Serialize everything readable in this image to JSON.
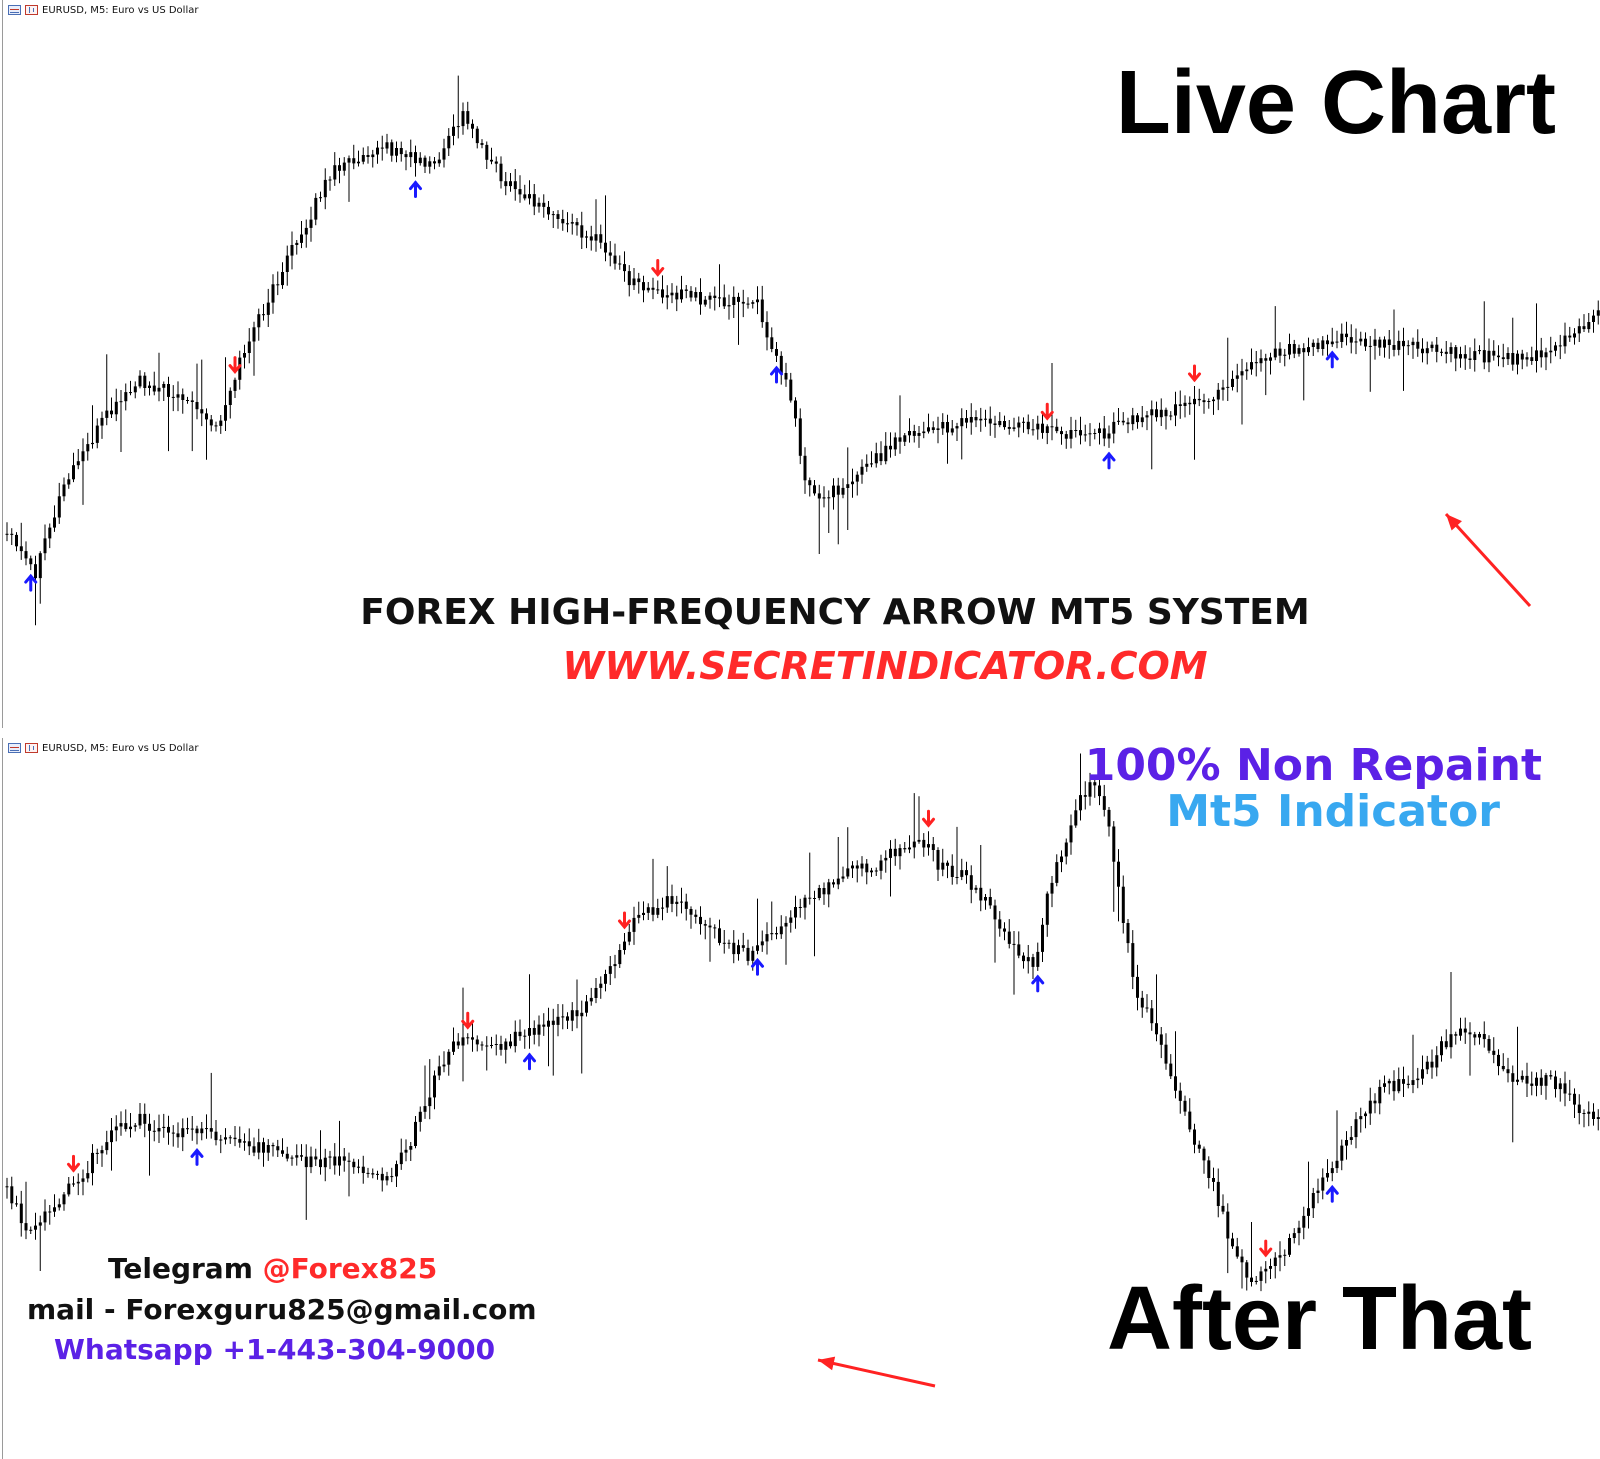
{
  "top_chart": {
    "window_title": "EURUSD, M5:  Euro vs US Dollar",
    "label": "Live Chart",
    "up_arrow_bars": [
      5,
      86,
      162,
      232,
      279
    ],
    "down_arrow_bars": [
      48,
      137,
      219,
      250
    ]
  },
  "bottom_chart": {
    "window_title": "EURUSD, M5:  Euro vs US Dollar",
    "label": "After That",
    "up_arrow_bars": [
      40,
      110,
      158,
      217,
      279
    ],
    "down_arrow_bars": [
      14,
      97,
      130,
      194,
      265
    ]
  },
  "banner": {
    "system_title": "FOREX HIGH-FREQUENCY ARROW MT5 SYSTEM",
    "website": "WWW.SECRETINDICATOR.COM"
  },
  "badge": {
    "line1": "100% Non Repaint",
    "line2": "Mt5 Indicator"
  },
  "contacts": {
    "telegram_label": "Telegram ",
    "telegram_handle": "@Forex825",
    "mail": "mail - Forexguru825@gmail.com",
    "whatsapp": "Whatsapp +1-443-304-9000"
  },
  "colors": {
    "candle": "#000000",
    "up_arrow": "#1a1aff",
    "down_arrow": "#ff2222",
    "pointer_arrow": "#ff2222",
    "website": "#ff2a2a",
    "telegram_handle": "#ff2a2a",
    "non_repaint": "#5b21e6",
    "mt5_indicator": "#38a8f0",
    "whatsapp": "#5b21e6"
  },
  "icons": [
    "chart-bars-icon",
    "chart-candles-icon",
    "buy-arrow-icon",
    "sell-arrow-icon",
    "pointer-arrow-icon"
  ]
}
